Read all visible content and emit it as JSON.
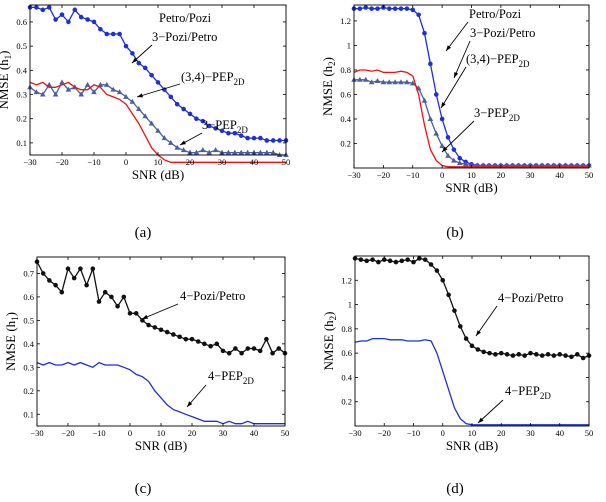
{
  "colors": {
    "blue": "#1f2fd6",
    "red": "#ee1111",
    "slate": "#4a5fa0",
    "black": "#111111"
  },
  "chart_data": [
    {
      "type": "line",
      "caption": "(a)",
      "xlabel": "SNR (dB)",
      "ylabel": [
        "NMSE (h",
        "1",
        ")"
      ],
      "xlim": [
        -30,
        50
      ],
      "ylim": [
        0.05,
        0.67
      ],
      "xticks": [
        -30,
        -20,
        -10,
        0,
        10,
        20,
        30,
        40,
        50
      ],
      "xtick_labels": [
        "−30",
        "−20",
        "−10",
        "0",
        "10",
        "20",
        "30",
        "40",
        "50"
      ],
      "yticks": [
        0.1,
        0.2,
        0.3,
        0.4,
        0.5,
        0.6
      ],
      "ytick_labels": [
        "0.1",
        "0.2",
        "0.3",
        "0.4",
        "0.5",
        "0.6"
      ],
      "grid": false,
      "series": [
        {
          "color": "blue",
          "marker": "circle",
          "x": [
            -30,
            -28,
            -26,
            -24,
            -22,
            -20,
            -18,
            -16,
            -14,
            -12,
            -10,
            -8,
            -6,
            -4,
            -2,
            0,
            2,
            4,
            6,
            8,
            10,
            12,
            14,
            16,
            18,
            20,
            22,
            24,
            26,
            28,
            30,
            32,
            34,
            36,
            38,
            40,
            42,
            44,
            46,
            48,
            50
          ],
          "y": [
            0.66,
            0.66,
            0.65,
            0.66,
            0.61,
            0.63,
            0.6,
            0.65,
            0.62,
            0.61,
            0.6,
            0.57,
            0.55,
            0.55,
            0.55,
            0.5,
            0.47,
            0.43,
            0.41,
            0.38,
            0.35,
            0.32,
            0.29,
            0.26,
            0.24,
            0.22,
            0.2,
            0.19,
            0.17,
            0.16,
            0.15,
            0.14,
            0.14,
            0.13,
            0.12,
            0.12,
            0.12,
            0.11,
            0.11,
            0.11,
            0.11
          ]
        },
        {
          "color": "slate",
          "marker": "triangle",
          "x": [
            -30,
            -28,
            -26,
            -24,
            -22,
            -20,
            -18,
            -16,
            -14,
            -12,
            -10,
            -8,
            -6,
            -4,
            -2,
            0,
            2,
            4,
            6,
            8,
            10,
            12,
            14,
            16,
            18,
            20,
            22,
            24,
            26,
            28,
            30,
            32,
            34,
            36,
            38,
            40,
            42,
            44,
            46,
            48,
            50
          ],
          "y": [
            0.33,
            0.31,
            0.3,
            0.34,
            0.3,
            0.35,
            0.32,
            0.33,
            0.3,
            0.34,
            0.31,
            0.34,
            0.34,
            0.32,
            0.31,
            0.29,
            0.27,
            0.24,
            0.21,
            0.18,
            0.15,
            0.12,
            0.1,
            0.08,
            0.07,
            0.06,
            0.06,
            0.07,
            0.06,
            0.07,
            0.06,
            0.06,
            0.06,
            0.06,
            0.06,
            0.06,
            0.06,
            0.06,
            0.06,
            0.05,
            0.05
          ]
        },
        {
          "color": "red",
          "marker": "none",
          "x": [
            -30,
            -28,
            -26,
            -24,
            -22,
            -20,
            -18,
            -16,
            -14,
            -12,
            -10,
            -8,
            -6,
            -4,
            -2,
            0,
            2,
            4,
            6,
            8,
            10,
            12,
            14,
            16,
            18,
            20,
            25,
            30,
            35,
            40,
            45,
            50
          ],
          "y": [
            0.35,
            0.34,
            0.35,
            0.33,
            0.33,
            0.34,
            0.35,
            0.33,
            0.32,
            0.32,
            0.34,
            0.33,
            0.3,
            0.29,
            0.28,
            0.26,
            0.22,
            0.18,
            0.13,
            0.08,
            0.05,
            0.03,
            0.02,
            0.02,
            0.02,
            0.02,
            0.02,
            0.02,
            0.02,
            0.02,
            0.02,
            0.02
          ]
        }
      ],
      "annotations": [
        {
          "text": "Petro/Pozi"
        },
        {
          "text": "3−Pozi/Petro"
        },
        {
          "text": "(3,4)−PEP",
          "sub": "2D"
        },
        {
          "text": "3−PEP",
          "sub": "2D"
        }
      ]
    },
    {
      "type": "line",
      "caption": "(b)",
      "xlabel": "SNR (dB)",
      "ylabel": [
        "NMSE (h",
        "2",
        ")"
      ],
      "xlim": [
        -30,
        50
      ],
      "ylim": [
        0.0,
        1.33
      ],
      "xticks": [
        -30,
        -20,
        -10,
        0,
        10,
        20,
        30,
        40,
        50
      ],
      "xtick_labels": [
        "−30",
        "−20",
        "−10",
        "0",
        "10",
        "20",
        "30",
        "40",
        "50"
      ],
      "yticks": [
        0.2,
        0.4,
        0.6,
        0.8,
        1.0,
        1.2
      ],
      "ytick_labels": [
        "0.2",
        "0.4",
        "0.6",
        "0.8",
        "1",
        "1.2"
      ],
      "grid": false,
      "series": [
        {
          "color": "blue",
          "marker": "circle",
          "x": [
            -30,
            -28,
            -26,
            -24,
            -22,
            -20,
            -18,
            -16,
            -14,
            -12,
            -10,
            -8,
            -6,
            -4,
            -2,
            0,
            2,
            4,
            6,
            8,
            10,
            12,
            14,
            16,
            18,
            20,
            22,
            24,
            26,
            28,
            30,
            32,
            34,
            36,
            38,
            40,
            42,
            44,
            46,
            48,
            50
          ],
          "y": [
            1.3,
            1.3,
            1.31,
            1.3,
            1.3,
            1.31,
            1.3,
            1.3,
            1.3,
            1.3,
            1.29,
            1.25,
            1.1,
            0.85,
            0.6,
            0.4,
            0.25,
            0.15,
            0.08,
            0.05,
            0.03,
            0.02,
            0.02,
            0.02,
            0.02,
            0.02,
            0.02,
            0.02,
            0.02,
            0.02,
            0.02,
            0.02,
            0.02,
            0.02,
            0.02,
            0.02,
            0.02,
            0.02,
            0.02,
            0.02,
            0.02
          ]
        },
        {
          "color": "slate",
          "marker": "triangle",
          "x": [
            -30,
            -28,
            -26,
            -24,
            -22,
            -20,
            -18,
            -16,
            -14,
            -12,
            -10,
            -8,
            -6,
            -4,
            -2,
            0,
            2,
            4,
            6,
            8,
            10,
            12,
            14,
            16,
            18,
            20,
            22,
            24,
            26,
            28,
            30,
            32,
            34,
            36,
            38,
            40,
            42,
            44,
            46,
            48,
            50
          ],
          "y": [
            0.72,
            0.72,
            0.72,
            0.7,
            0.71,
            0.7,
            0.7,
            0.7,
            0.7,
            0.7,
            0.69,
            0.65,
            0.55,
            0.4,
            0.28,
            0.18,
            0.1,
            0.06,
            0.04,
            0.03,
            0.02,
            0.02,
            0.02,
            0.02,
            0.02,
            0.02,
            0.02,
            0.02,
            0.02,
            0.02,
            0.02,
            0.02,
            0.02,
            0.02,
            0.02,
            0.02,
            0.02,
            0.02,
            0.02,
            0.02,
            0.02
          ]
        },
        {
          "color": "red",
          "marker": "none",
          "x": [
            -30,
            -28,
            -26,
            -24,
            -22,
            -20,
            -18,
            -16,
            -14,
            -12,
            -10,
            -8,
            -6,
            -4,
            -2,
            0,
            2,
            4,
            6,
            8,
            10,
            15,
            20,
            30,
            40,
            50
          ],
          "y": [
            0.78,
            0.8,
            0.8,
            0.79,
            0.8,
            0.78,
            0.78,
            0.78,
            0.79,
            0.78,
            0.75,
            0.6,
            0.35,
            0.15,
            0.06,
            0.02,
            0.01,
            0.01,
            0.01,
            0.01,
            0.01,
            0.01,
            0.01,
            0.01,
            0.01,
            0.01
          ]
        }
      ],
      "annotations": [
        {
          "text": "Petro/Pozi"
        },
        {
          "text": "3−Pozi/Petro"
        },
        {
          "text": "(3,4)−PEP",
          "sub": "2D"
        },
        {
          "text": "3−PEP",
          "sub": "2D"
        }
      ]
    },
    {
      "type": "line",
      "caption": "(c)",
      "xlabel": "SNR (dB)",
      "ylabel": [
        "NMSE (h",
        "1",
        ")"
      ],
      "xlim": [
        -30,
        50
      ],
      "ylim": [
        0.05,
        0.77
      ],
      "xticks": [
        -30,
        -20,
        -10,
        0,
        10,
        20,
        30,
        40,
        50
      ],
      "xtick_labels": [
        "−30",
        "−20",
        "−10",
        "0",
        "10",
        "20",
        "30",
        "40",
        "50"
      ],
      "yticks": [
        0.1,
        0.2,
        0.3,
        0.4,
        0.5,
        0.6,
        0.7
      ],
      "ytick_labels": [
        "0.1",
        "0.2",
        "0.3",
        "0.4",
        "0.5",
        "0.6",
        "0.7"
      ],
      "grid": false,
      "series": [
        {
          "color": "black",
          "marker": "circle",
          "x": [
            -30,
            -28,
            -26,
            -24,
            -22,
            -20,
            -18,
            -16,
            -14,
            -12,
            -10,
            -8,
            -6,
            -4,
            -2,
            0,
            2,
            4,
            6,
            8,
            10,
            12,
            14,
            16,
            18,
            20,
            22,
            24,
            26,
            28,
            30,
            32,
            34,
            36,
            38,
            40,
            42,
            44,
            46,
            48,
            50
          ],
          "y": [
            0.75,
            0.7,
            0.67,
            0.65,
            0.62,
            0.72,
            0.68,
            0.72,
            0.65,
            0.72,
            0.58,
            0.62,
            0.6,
            0.56,
            0.6,
            0.53,
            0.53,
            0.5,
            0.48,
            0.47,
            0.46,
            0.45,
            0.44,
            0.43,
            0.42,
            0.42,
            0.41,
            0.4,
            0.39,
            0.4,
            0.37,
            0.36,
            0.38,
            0.36,
            0.38,
            0.38,
            0.37,
            0.42,
            0.36,
            0.38,
            0.36
          ]
        },
        {
          "color": "blue",
          "marker": "none",
          "x": [
            -30,
            -28,
            -26,
            -24,
            -22,
            -20,
            -18,
            -16,
            -14,
            -12,
            -10,
            -8,
            -6,
            -4,
            -2,
            0,
            2,
            4,
            6,
            8,
            10,
            12,
            14,
            16,
            18,
            20,
            22,
            24,
            26,
            28,
            30,
            32,
            34,
            36,
            38,
            40,
            42,
            44,
            46,
            48,
            50
          ],
          "y": [
            0.32,
            0.31,
            0.32,
            0.31,
            0.31,
            0.32,
            0.31,
            0.32,
            0.31,
            0.3,
            0.32,
            0.31,
            0.31,
            0.31,
            0.3,
            0.29,
            0.27,
            0.26,
            0.24,
            0.2,
            0.17,
            0.14,
            0.12,
            0.11,
            0.1,
            0.09,
            0.08,
            0.07,
            0.07,
            0.07,
            0.06,
            0.07,
            0.06,
            0.06,
            0.07,
            0.06,
            0.06,
            0.06,
            0.06,
            0.06,
            0.06
          ]
        }
      ],
      "annotations": [
        {
          "text": "4−Pozi/Petro"
        },
        {
          "text": "4−PEP",
          "sub": "2D"
        }
      ]
    },
    {
      "type": "line",
      "caption": "(d)",
      "xlabel": "SNR (dB)",
      "ylabel": [
        "NMSE (h",
        "2",
        ")"
      ],
      "xlim": [
        -30,
        50
      ],
      "ylim": [
        0.0,
        1.4
      ],
      "xticks": [
        -30,
        -20,
        -10,
        0,
        10,
        20,
        30,
        40,
        50
      ],
      "xtick_labels": [
        "−30",
        "−20",
        "−10",
        "0",
        "10",
        "20",
        "30",
        "40",
        "50"
      ],
      "yticks": [
        0.2,
        0.4,
        0.6,
        0.8,
        1.0,
        1.2
      ],
      "ytick_labels": [
        "0.2",
        "0.4",
        "0.6",
        "0.8",
        "1",
        "1.2"
      ],
      "grid": false,
      "series": [
        {
          "color": "black",
          "marker": "circle",
          "x": [
            -30,
            -28,
            -26,
            -24,
            -22,
            -20,
            -18,
            -16,
            -14,
            -12,
            -10,
            -8,
            -6,
            -4,
            -2,
            0,
            2,
            4,
            6,
            8,
            10,
            12,
            14,
            16,
            18,
            20,
            22,
            24,
            26,
            28,
            30,
            32,
            34,
            36,
            38,
            40,
            42,
            44,
            46,
            48,
            50
          ],
          "y": [
            1.38,
            1.37,
            1.36,
            1.37,
            1.35,
            1.37,
            1.36,
            1.35,
            1.36,
            1.37,
            1.35,
            1.38,
            1.37,
            1.33,
            1.28,
            1.2,
            1.08,
            0.95,
            0.82,
            0.72,
            0.66,
            0.63,
            0.61,
            0.6,
            0.59,
            0.6,
            0.59,
            0.58,
            0.59,
            0.58,
            0.6,
            0.59,
            0.58,
            0.59,
            0.58,
            0.59,
            0.58,
            0.57,
            0.59,
            0.56,
            0.58
          ]
        },
        {
          "color": "blue",
          "marker": "none",
          "x": [
            -30,
            -28,
            -26,
            -24,
            -22,
            -20,
            -18,
            -16,
            -14,
            -12,
            -10,
            -8,
            -6,
            -4,
            -2,
            0,
            2,
            4,
            6,
            8,
            10,
            12,
            14,
            16,
            18,
            20,
            25,
            30,
            35,
            40,
            45,
            50
          ],
          "y": [
            0.69,
            0.7,
            0.7,
            0.72,
            0.72,
            0.72,
            0.71,
            0.71,
            0.71,
            0.7,
            0.7,
            0.7,
            0.71,
            0.7,
            0.6,
            0.45,
            0.3,
            0.15,
            0.06,
            0.02,
            0.01,
            0.01,
            0.01,
            0.01,
            0.01,
            0.01,
            0.01,
            0.01,
            0.01,
            0.01,
            0.01,
            0.01
          ]
        }
      ],
      "annotations": [
        {
          "text": "4−Pozi/Petro"
        },
        {
          "text": "4−PEP",
          "sub": "2D"
        }
      ]
    }
  ]
}
